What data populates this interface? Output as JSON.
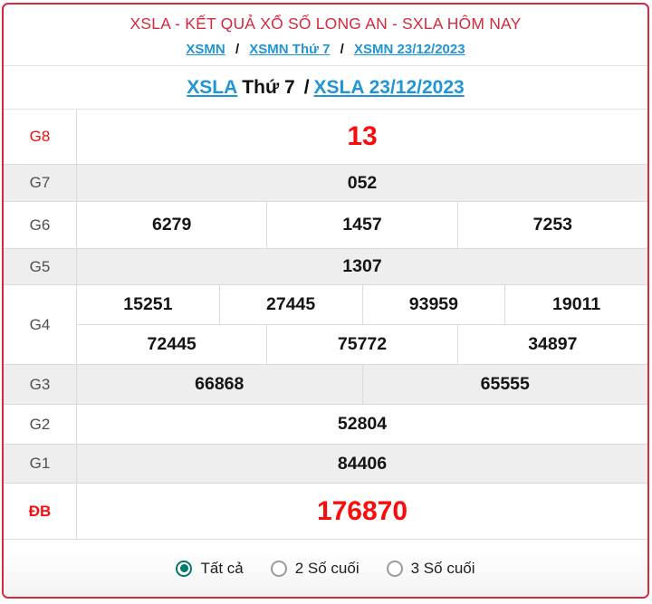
{
  "header": {
    "title": "XSLA - KẾT QUẢ XỔ SỐ LONG AN - SXLA HÔM NAY",
    "breadcrumb": {
      "separator": "/",
      "items": [
        {
          "label": "XSMN"
        },
        {
          "label": "XSMN Thứ 7"
        },
        {
          "label": "XSMN 23/12/2023"
        }
      ]
    },
    "subheader": {
      "link1": "XSLA",
      "day": "Thứ 7",
      "separator": "/",
      "link2": "XSLA 23/12/2023"
    }
  },
  "results": {
    "rows": [
      {
        "label": "G8",
        "highlight": true,
        "groups": [
          [
            "13"
          ]
        ]
      },
      {
        "label": "G7",
        "highlight": false,
        "groups": [
          [
            "052"
          ]
        ]
      },
      {
        "label": "G6",
        "highlight": false,
        "groups": [
          [
            "6279",
            "1457",
            "7253"
          ]
        ]
      },
      {
        "label": "G5",
        "highlight": false,
        "groups": [
          [
            "1307"
          ]
        ]
      },
      {
        "label": "G4",
        "highlight": false,
        "groups": [
          [
            "15251",
            "27445",
            "93959",
            "19011"
          ],
          [
            "72445",
            "75772",
            "34897"
          ]
        ]
      },
      {
        "label": "G3",
        "highlight": false,
        "groups": [
          [
            "66868",
            "65555"
          ]
        ]
      },
      {
        "label": "G2",
        "highlight": false,
        "groups": [
          [
            "52804"
          ]
        ]
      },
      {
        "label": "G1",
        "highlight": false,
        "groups": [
          [
            "84406"
          ]
        ]
      },
      {
        "label": "ĐB",
        "highlight": true,
        "groups": [
          [
            "176870"
          ]
        ]
      }
    ]
  },
  "filter": {
    "options": [
      {
        "label": "Tất cả",
        "selected": "true"
      },
      {
        "label": "2 Số cuối",
        "selected": "false"
      },
      {
        "label": "3 Số cuối",
        "selected": "false"
      }
    ]
  },
  "colors": {
    "accent_red": "#d5293d",
    "number_red": "#fa0c0c",
    "link_blue": "#2095d8",
    "radio_teal": "#00796b",
    "row_alt_bg": "#eeeeee",
    "cell_border": "#dadada",
    "label_gray": "#4f4f4f"
  }
}
